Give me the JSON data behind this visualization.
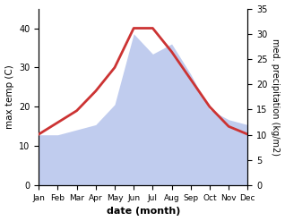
{
  "months": [
    "Jan",
    "Feb",
    "Mar",
    "Apr",
    "May",
    "Jun",
    "Jul",
    "Aug",
    "Sep",
    "Oct",
    "Nov",
    "Dec"
  ],
  "temperature": [
    13,
    16,
    19,
    24,
    30,
    40,
    40,
    34,
    27,
    20,
    15,
    13
  ],
  "precipitation": [
    10,
    10,
    11,
    12,
    16,
    30,
    26,
    28,
    22,
    15,
    13,
    12
  ],
  "temp_color": "#cc3333",
  "precip_color": "#c0ccee",
  "xlabel": "date (month)",
  "ylabel_left": "max temp (C)",
  "ylabel_right": "med. precipitation (kg/m2)",
  "ylim_left": [
    0,
    45
  ],
  "ylim_right": [
    0,
    35
  ],
  "yticks_left": [
    0,
    10,
    20,
    30,
    40
  ],
  "yticks_right": [
    0,
    5,
    10,
    15,
    20,
    25,
    30,
    35
  ],
  "background_color": "#ffffff",
  "temp_linewidth": 2.0
}
